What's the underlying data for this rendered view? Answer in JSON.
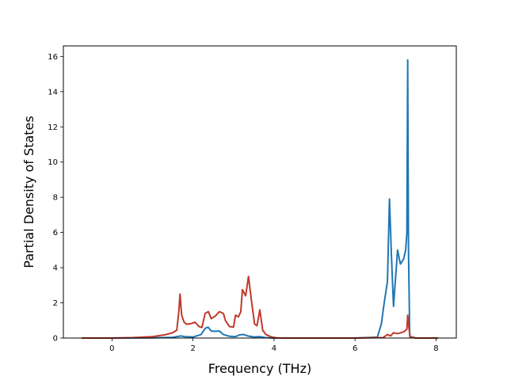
{
  "chart_data": {
    "type": "line",
    "title": "",
    "xlabel": "Frequency (THz)",
    "ylabel": "Partial Density of States",
    "xlim": [
      -1.2,
      8.5
    ],
    "ylim": [
      0,
      16.6
    ],
    "xticks": [
      0,
      2,
      4,
      6,
      8
    ],
    "yticks": [
      0,
      2,
      4,
      6,
      8,
      10,
      12,
      14,
      16
    ],
    "xtick_labels": [
      "0",
      "2",
      "4",
      "6",
      "8"
    ],
    "ytick_labels": [
      "0",
      "2",
      "4",
      "6",
      "8",
      "10",
      "12",
      "14",
      "16"
    ],
    "grid": false,
    "legend": "none",
    "series": [
      {
        "color": "#1f77b4",
        "x": [
          -0.75,
          0.0,
          1.0,
          1.5,
          1.65,
          1.7,
          1.8,
          2.0,
          2.2,
          2.3,
          2.37,
          2.45,
          2.55,
          2.65,
          2.75,
          2.9,
          3.05,
          3.15,
          3.25,
          3.35,
          3.5,
          3.65,
          3.8,
          4.0,
          5.0,
          6.0,
          6.55,
          6.65,
          6.72,
          6.8,
          6.85,
          6.9,
          6.95,
          7.05,
          7.12,
          7.2,
          7.25,
          7.28,
          7.3,
          7.32,
          7.35,
          7.5,
          8.05
        ],
        "y": [
          0,
          0,
          0.01,
          0.04,
          0.1,
          0.12,
          0.08,
          0.06,
          0.2,
          0.55,
          0.62,
          0.4,
          0.38,
          0.4,
          0.2,
          0.1,
          0.08,
          0.18,
          0.2,
          0.12,
          0.06,
          0.08,
          0.02,
          0,
          0,
          0,
          0.05,
          0.8,
          2.0,
          3.2,
          7.9,
          4.6,
          1.8,
          5.0,
          4.2,
          4.5,
          5.0,
          6.0,
          15.8,
          5.0,
          0.1,
          0,
          0
        ]
      },
      {
        "color": "#c0392b",
        "x": [
          -0.75,
          0.0,
          0.5,
          1.0,
          1.3,
          1.5,
          1.6,
          1.65,
          1.68,
          1.72,
          1.78,
          1.85,
          1.95,
          2.05,
          2.15,
          2.22,
          2.3,
          2.38,
          2.45,
          2.55,
          2.65,
          2.75,
          2.8,
          2.9,
          3.0,
          3.05,
          3.12,
          3.18,
          3.22,
          3.3,
          3.37,
          3.45,
          3.52,
          3.58,
          3.65,
          3.72,
          3.8,
          3.95,
          4.1,
          5.0,
          6.0,
          6.7,
          6.8,
          6.88,
          6.95,
          7.05,
          7.2,
          7.28,
          7.3,
          7.33,
          7.36,
          7.5,
          8.05
        ],
        "y": [
          0,
          0,
          0.02,
          0.08,
          0.18,
          0.3,
          0.45,
          1.5,
          2.5,
          1.3,
          0.9,
          0.78,
          0.82,
          0.9,
          0.65,
          0.6,
          1.4,
          1.5,
          1.1,
          1.25,
          1.5,
          1.4,
          1.0,
          0.65,
          0.62,
          1.3,
          1.2,
          1.5,
          2.75,
          2.4,
          3.5,
          2.0,
          0.8,
          0.7,
          1.6,
          0.45,
          0.2,
          0.05,
          0,
          0,
          0,
          0.03,
          0.2,
          0.12,
          0.3,
          0.25,
          0.35,
          0.5,
          1.3,
          0.6,
          0.05,
          0,
          0
        ]
      }
    ]
  }
}
